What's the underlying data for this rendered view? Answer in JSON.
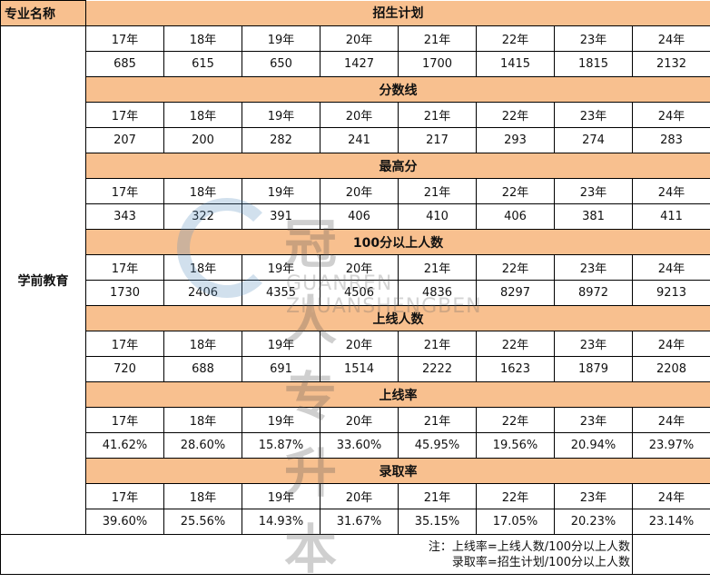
{
  "corner_label": "专业名称",
  "major": "学前教育",
  "years": [
    "17年",
    "18年",
    "19年",
    "20年",
    "21年",
    "22年",
    "23年",
    "24年"
  ],
  "sections": [
    {
      "title": "招生计划",
      "values": [
        "685",
        "615",
        "650",
        "1427",
        "1700",
        "1415",
        "1815",
        "2132"
      ]
    },
    {
      "title": "分数线",
      "values": [
        "207",
        "200",
        "282",
        "241",
        "217",
        "293",
        "274",
        "283"
      ]
    },
    {
      "title": "最高分",
      "values": [
        "343",
        "322",
        "391",
        "406",
        "410",
        "406",
        "381",
        "411"
      ]
    },
    {
      "title": "100分以上人数",
      "values": [
        "1730",
        "2406",
        "4355",
        "4506",
        "4836",
        "8297",
        "8972",
        "9213"
      ]
    },
    {
      "title": "上线人数",
      "values": [
        "720",
        "688",
        "691",
        "1514",
        "2222",
        "1623",
        "1879",
        "2208"
      ]
    },
    {
      "title": "上线率",
      "values": [
        "41.62%",
        "28.60%",
        "15.87%",
        "33.60%",
        "45.95%",
        "19.56%",
        "20.94%",
        "23.97%"
      ]
    },
    {
      "title": "录取率",
      "values": [
        "39.60%",
        "25.56%",
        "14.93%",
        "31.67%",
        "35.15%",
        "17.05%",
        "20.23%",
        "23.14%"
      ]
    }
  ],
  "note": {
    "line1": "注：上线率=上线人数/100分以上人数",
    "line2": "录取率=招生计划/100分以上人数"
  },
  "watermark": {
    "cn": "冠人专升本",
    "en": "GUANREN ZHUANSHENGBEN"
  },
  "colors": {
    "header_bg": "#F8C08F",
    "border": "#000000"
  }
}
